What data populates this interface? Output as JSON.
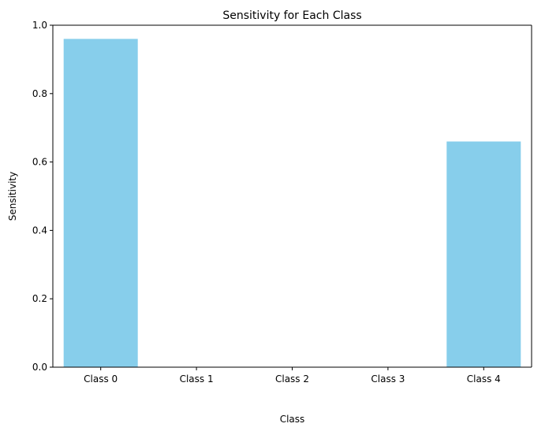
{
  "chart_data": {
    "type": "bar",
    "title": "Sensitivity for Each Class",
    "xlabel": "Class",
    "ylabel": "Sensitivity",
    "categories": [
      "Class 0",
      "Class 1",
      "Class 2",
      "Class 3",
      "Class 4"
    ],
    "values": [
      0.96,
      0.0,
      0.0,
      0.0,
      0.66
    ],
    "ylim": [
      0,
      1.0
    ],
    "yticks": [
      0.0,
      0.2,
      0.4,
      0.6,
      0.8,
      1.0
    ],
    "ytick_labels": [
      "0.0",
      "0.2",
      "0.4",
      "0.6",
      "0.8",
      "1.0"
    ],
    "grid": false,
    "bar_color": "#87ceeb"
  }
}
